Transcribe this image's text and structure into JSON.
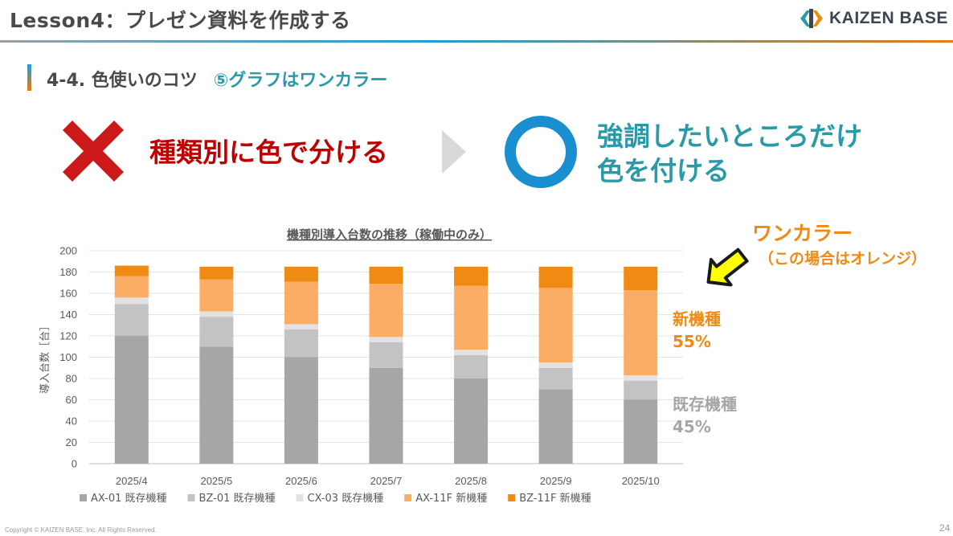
{
  "header": {
    "title": "Lesson4：プレゼン資料を作成する",
    "logo_text": "KAIZEN BASE"
  },
  "section": {
    "number": "4-4.  色使いのコツ",
    "subtitle": "⑤グラフはワンカラー"
  },
  "comparison": {
    "bad_text": "種類別に色で分ける",
    "good_text_line1": "強調したいところだけ",
    "good_text_line2": "色を付ける",
    "bad_icon": "cross-icon",
    "good_icon": "circle-icon",
    "arrow_icon": "chevron-right-icon"
  },
  "callout": {
    "title": "ワンカラー",
    "subtitle": "（この場合はオレンジ）",
    "arrow_icon": "arrow-icon",
    "new_label": "新機種",
    "new_pct": "55%",
    "old_label": "既存機種",
    "old_pct": "45%"
  },
  "chart_data": {
    "type": "bar",
    "stacked": true,
    "title": "機種別導入台数の推移（稼働中のみ）",
    "ylabel": "導入台数［台］",
    "xlabel": "",
    "ylim": [
      0,
      200
    ],
    "yticks": [
      0,
      20,
      40,
      60,
      80,
      100,
      120,
      140,
      160,
      180,
      200
    ],
    "grid": true,
    "legend_position": "bottom",
    "categories": [
      "2025/4",
      "2025/5",
      "2025/6",
      "2025/7",
      "2025/8",
      "2025/9",
      "2025/10"
    ],
    "series": [
      {
        "name": "AX-01 既存機種",
        "color": "#a6a6a6",
        "values": [
          120,
          110,
          100,
          90,
          80,
          70,
          60
        ]
      },
      {
        "name": "BZ-01 既存機種",
        "color": "#c3c3c3",
        "values": [
          30,
          28,
          26,
          24,
          22,
          20,
          18
        ]
      },
      {
        "name": "CX-03 既存機種",
        "color": "#e2e2e2",
        "values": [
          6,
          5,
          5,
          5,
          5,
          5,
          5
        ]
      },
      {
        "name": "AX-11F 新機種",
        "color": "#fbad66",
        "values": [
          20,
          30,
          40,
          50,
          60,
          70,
          80
        ]
      },
      {
        "name": "BZ-11F 新機種",
        "color": "#ef8a12",
        "values": [
          10,
          12,
          14,
          16,
          18,
          20,
          22
        ]
      }
    ]
  },
  "footer": {
    "copyright": "Copyright ©  KAIZEN BASE, Inc.  All Rights Reserved.",
    "page": "24"
  },
  "colors": {
    "accent_orange": "#ef8a12",
    "accent_teal": "#2a9aa8",
    "bad_red": "#c00000",
    "good_blue": "#1a8fd0"
  }
}
